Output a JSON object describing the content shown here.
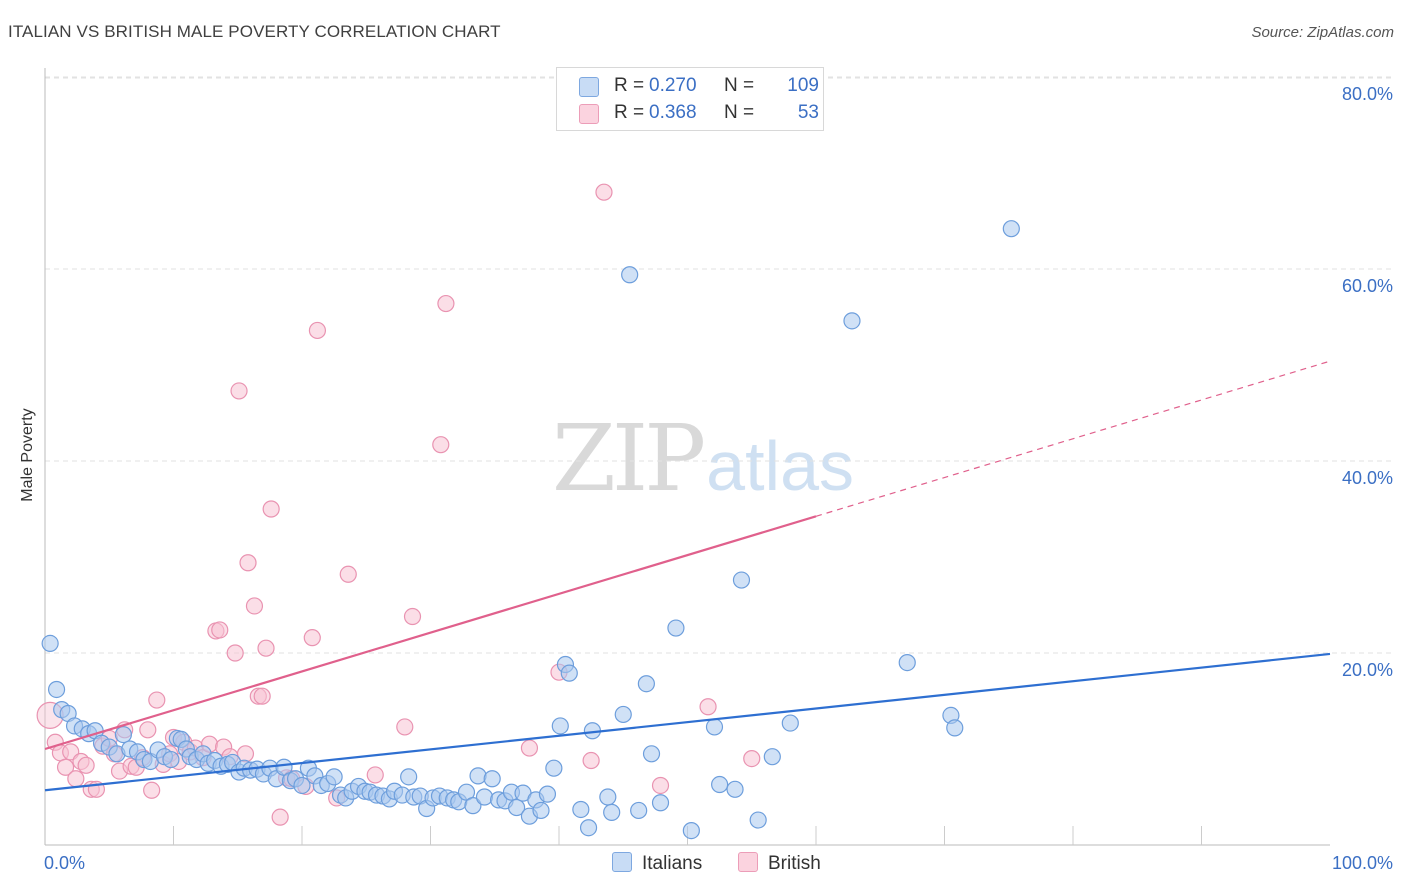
{
  "header": {
    "title": "ITALIAN VS BRITISH MALE POVERTY CORRELATION CHART",
    "source": "Source: ZipAtlas.com"
  },
  "watermark": {
    "zip": "ZIP",
    "atlas": "atlas"
  },
  "legend": {
    "rows": [
      {
        "r_label": "R =",
        "r_value": "0.270",
        "n_label": "N =",
        "n_value": "109",
        "color": "#a9c8ef"
      },
      {
        "r_label": "R =",
        "r_value": "0.368",
        "n_label": "N =",
        "n_value": "53",
        "color": "#f5bccd"
      }
    ]
  },
  "bottom_legend": [
    {
      "label": "Italians",
      "color": "#a9c8ef"
    },
    {
      "label": "British",
      "color": "#f5bccd"
    }
  ],
  "colors": {
    "italians_fill": "#a9c8ef",
    "italians_stroke": "#6d9edc",
    "italians_line": "#2e6fd1",
    "british_fill": "#f7c3d3",
    "british_stroke": "#e993b1",
    "british_line": "#e0608c",
    "tick_label": "#3b6fc4",
    "grid": "#e2e2e2"
  },
  "chart_data": {
    "type": "scatter",
    "title": "ITALIAN VS BRITISH MALE POVERTY CORRELATION CHART",
    "xlabel": "",
    "ylabel": "Male Poverty",
    "xlim": [
      0,
      100
    ],
    "ylim": [
      0,
      85
    ],
    "x_tick_labels": [
      {
        "value": 0,
        "label": "0.0%"
      },
      {
        "value": 100,
        "label": "100.0%"
      }
    ],
    "y_tick_labels": [
      {
        "value": 20,
        "label": "20.0%"
      },
      {
        "value": 40,
        "label": "40.0%"
      },
      {
        "value": 60,
        "label": "60.0%"
      },
      {
        "value": 80,
        "label": "80.0%"
      }
    ],
    "x_minor_ticks": [
      10,
      20,
      30,
      40,
      50,
      60,
      70,
      80,
      90
    ],
    "grid": true,
    "legend_position": "top-center",
    "series": [
      {
        "name": "Italians",
        "r": 0.27,
        "n": 109,
        "trend": {
          "x": [
            0,
            100
          ],
          "y": [
            5.7,
            19.9
          ],
          "dashed_from": null
        },
        "points": [
          [
            0.4,
            21.0
          ],
          [
            0.9,
            16.2
          ],
          [
            1.3,
            14.1
          ],
          [
            1.8,
            13.7
          ],
          [
            2.3,
            12.4
          ],
          [
            2.9,
            12.1
          ],
          [
            3.4,
            11.6
          ],
          [
            3.9,
            11.9
          ],
          [
            4.4,
            10.6
          ],
          [
            5.0,
            10.2
          ],
          [
            5.6,
            9.5
          ],
          [
            6.1,
            11.5
          ],
          [
            6.6,
            10.0
          ],
          [
            7.2,
            9.7
          ],
          [
            7.7,
            8.9
          ],
          [
            8.2,
            8.7
          ],
          [
            8.8,
            9.9
          ],
          [
            9.3,
            9.2
          ],
          [
            9.8,
            8.9
          ],
          [
            10.3,
            11.1
          ],
          [
            10.6,
            11.0
          ],
          [
            11.0,
            10.0
          ],
          [
            11.3,
            9.2
          ],
          [
            11.8,
            8.9
          ],
          [
            12.3,
            9.5
          ],
          [
            12.7,
            8.5
          ],
          [
            13.2,
            8.8
          ],
          [
            13.7,
            8.2
          ],
          [
            14.2,
            8.4
          ],
          [
            14.6,
            8.6
          ],
          [
            15.1,
            7.6
          ],
          [
            15.5,
            8.0
          ],
          [
            16.0,
            7.8
          ],
          [
            16.5,
            7.9
          ],
          [
            17.0,
            7.4
          ],
          [
            17.5,
            8.0
          ],
          [
            18.0,
            6.9
          ],
          [
            18.6,
            8.1
          ],
          [
            19.1,
            6.7
          ],
          [
            19.5,
            6.9
          ],
          [
            20.0,
            6.2
          ],
          [
            20.5,
            8.0
          ],
          [
            21.0,
            7.2
          ],
          [
            21.5,
            6.2
          ],
          [
            22.0,
            6.4
          ],
          [
            22.5,
            7.1
          ],
          [
            23.0,
            5.2
          ],
          [
            23.4,
            4.9
          ],
          [
            23.9,
            5.6
          ],
          [
            24.4,
            6.1
          ],
          [
            24.9,
            5.6
          ],
          [
            25.3,
            5.5
          ],
          [
            25.8,
            5.2
          ],
          [
            26.3,
            5.1
          ],
          [
            26.8,
            4.8
          ],
          [
            27.2,
            5.6
          ],
          [
            27.8,
            5.2
          ],
          [
            28.3,
            7.1
          ],
          [
            28.7,
            5.0
          ],
          [
            29.2,
            5.1
          ],
          [
            29.7,
            3.8
          ],
          [
            30.2,
            4.9
          ],
          [
            30.7,
            5.1
          ],
          [
            31.3,
            4.9
          ],
          [
            31.8,
            4.7
          ],
          [
            32.2,
            4.5
          ],
          [
            32.8,
            5.5
          ],
          [
            33.3,
            4.1
          ],
          [
            33.7,
            7.2
          ],
          [
            34.2,
            5.0
          ],
          [
            34.8,
            6.9
          ],
          [
            35.3,
            4.7
          ],
          [
            35.8,
            4.6
          ],
          [
            36.3,
            5.5
          ],
          [
            36.7,
            3.9
          ],
          [
            37.2,
            5.4
          ],
          [
            37.7,
            3.0
          ],
          [
            38.2,
            4.7
          ],
          [
            38.6,
            3.6
          ],
          [
            39.1,
            5.3
          ],
          [
            39.6,
            8.0
          ],
          [
            40.1,
            12.4
          ],
          [
            40.5,
            18.8
          ],
          [
            40.8,
            17.9
          ],
          [
            41.7,
            3.7
          ],
          [
            42.3,
            1.8
          ],
          [
            42.6,
            11.9
          ],
          [
            43.8,
            5.0
          ],
          [
            44.1,
            3.4
          ],
          [
            45.0,
            13.6
          ],
          [
            46.2,
            3.6
          ],
          [
            46.8,
            16.8
          ],
          [
            47.2,
            9.5
          ],
          [
            47.9,
            4.4
          ],
          [
            49.1,
            22.6
          ],
          [
            50.3,
            1.5
          ],
          [
            52.1,
            12.3
          ],
          [
            52.5,
            6.3
          ],
          [
            53.7,
            5.8
          ],
          [
            54.2,
            27.6
          ],
          [
            55.5,
            2.6
          ],
          [
            56.6,
            9.2
          ],
          [
            58.0,
            12.7
          ],
          [
            62.8,
            54.6
          ],
          [
            67.1,
            19.0
          ],
          [
            70.5,
            13.5
          ],
          [
            70.8,
            12.2
          ],
          [
            75.2,
            64.2
          ],
          [
            45.5,
            59.4
          ]
        ]
      },
      {
        "name": "British",
        "r": 0.368,
        "n": 53,
        "trend": {
          "x": [
            0,
            100
          ],
          "y": [
            10.0,
            50.4
          ],
          "dashed_from": 60
        },
        "points": [
          [
            0.4,
            13.5
          ],
          [
            0.8,
            10.7
          ],
          [
            1.2,
            9.6
          ],
          [
            1.6,
            8.1
          ],
          [
            2.0,
            9.7
          ],
          [
            2.4,
            6.9
          ],
          [
            2.8,
            8.7
          ],
          [
            3.2,
            8.3
          ],
          [
            3.6,
            5.8
          ],
          [
            4.0,
            5.8
          ],
          [
            4.5,
            10.3
          ],
          [
            5.0,
            11.1
          ],
          [
            5.4,
            9.5
          ],
          [
            5.8,
            7.7
          ],
          [
            6.2,
            12.0
          ],
          [
            6.7,
            8.2
          ],
          [
            7.1,
            8.1
          ],
          [
            7.6,
            9.1
          ],
          [
            8.0,
            12.0
          ],
          [
            8.3,
            5.7
          ],
          [
            8.7,
            15.1
          ],
          [
            9.2,
            8.4
          ],
          [
            9.7,
            9.5
          ],
          [
            10.0,
            11.2
          ],
          [
            10.4,
            8.7
          ],
          [
            10.8,
            10.7
          ],
          [
            11.3,
            9.7
          ],
          [
            11.7,
            10.1
          ],
          [
            12.3,
            9.1
          ],
          [
            12.8,
            10.5
          ],
          [
            13.3,
            22.3
          ],
          [
            13.6,
            22.4
          ],
          [
            13.9,
            10.2
          ],
          [
            14.4,
            9.2
          ],
          [
            14.8,
            20.0
          ],
          [
            15.1,
            47.3
          ],
          [
            15.6,
            9.5
          ],
          [
            15.8,
            29.4
          ],
          [
            16.3,
            24.9
          ],
          [
            16.6,
            15.5
          ],
          [
            16.9,
            15.5
          ],
          [
            17.2,
            20.5
          ],
          [
            17.6,
            35.0
          ],
          [
            18.3,
            2.9
          ],
          [
            18.8,
            7.0
          ],
          [
            19.2,
            6.9
          ],
          [
            20.3,
            6.1
          ],
          [
            20.8,
            21.6
          ],
          [
            21.2,
            53.6
          ],
          [
            22.7,
            4.9
          ],
          [
            23.6,
            28.2
          ],
          [
            25.7,
            7.3
          ],
          [
            28.0,
            12.3
          ],
          [
            28.6,
            23.8
          ],
          [
            30.8,
            41.7
          ],
          [
            31.2,
            56.4
          ],
          [
            37.7,
            10.1
          ],
          [
            40.0,
            18.0
          ],
          [
            42.5,
            8.8
          ],
          [
            43.5,
            68.0
          ],
          [
            47.9,
            6.2
          ],
          [
            51.6,
            14.4
          ],
          [
            55.0,
            9.0
          ]
        ]
      }
    ]
  }
}
